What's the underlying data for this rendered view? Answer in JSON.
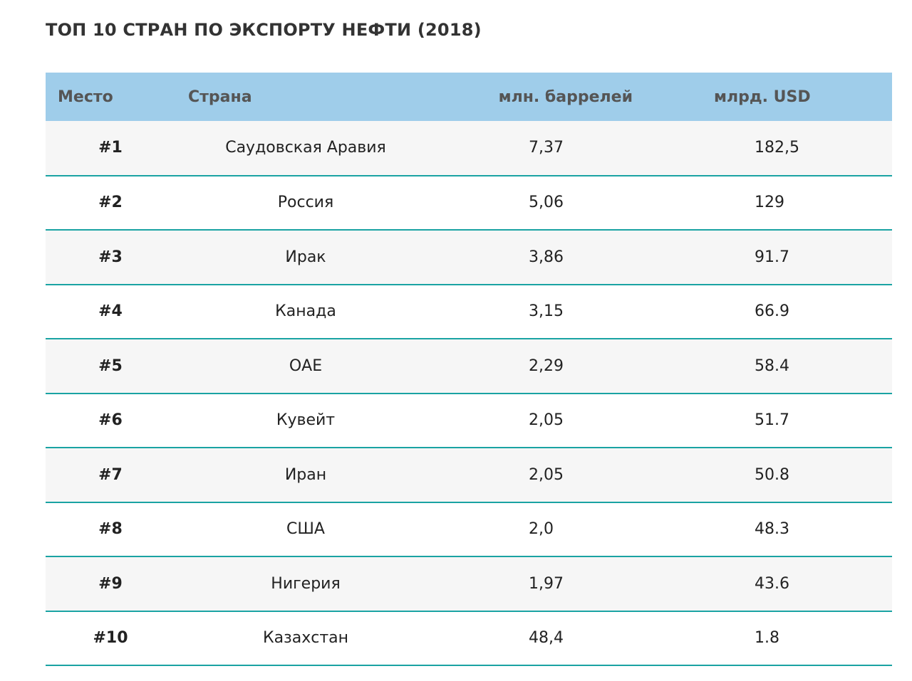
{
  "title": "ТОП 10 СТРАН ПО ЭКСПОРТУ НЕФТИ (2018)",
  "table": {
    "headers": {
      "place": "Место",
      "country": "Страна",
      "barrels": "млн. баррелей",
      "usd": "млрд. USD"
    },
    "rows": [
      {
        "rank": "#1",
        "country": "Саудовская Аравия",
        "barrels": "7,37",
        "usd": "182,5"
      },
      {
        "rank": "#2",
        "country": "Россия",
        "barrels": "5,06",
        "usd": "129"
      },
      {
        "rank": "#3",
        "country": "Ирак",
        "barrels": "3,86",
        "usd": "91.7"
      },
      {
        "rank": "#4",
        "country": "Канада",
        "barrels": "3,15",
        "usd": "66.9"
      },
      {
        "rank": "#5",
        "country": "ОАЕ",
        "barrels": "2,29",
        "usd": "58.4"
      },
      {
        "rank": "#6",
        "country": "Кувейт",
        "barrels": "2,05",
        "usd": "51.7"
      },
      {
        "rank": "#7",
        "country": "Иран",
        "barrels": "2,05",
        "usd": "50.8"
      },
      {
        "rank": "#8",
        "country": "США",
        "barrels": "2,0",
        "usd": "48.3"
      },
      {
        "rank": "#9",
        "country": "Нигерия",
        "barrels": "1,97",
        "usd": "43.6"
      },
      {
        "rank": "#10",
        "country": "Казахстан",
        "barrels": "48,4",
        "usd": "1.8"
      }
    ]
  },
  "colors": {
    "header_bg": "#9fcdea",
    "row_divider": "#1aa3a3",
    "odd_row_bg": "#f6f6f6"
  }
}
